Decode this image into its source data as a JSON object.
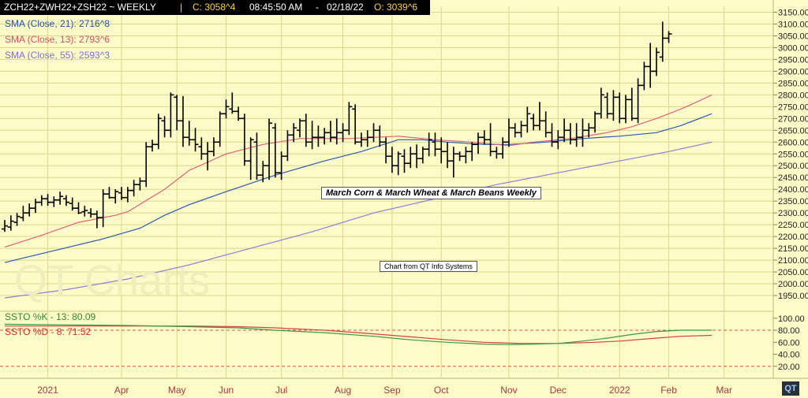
{
  "header": {
    "symbol": "ZCH22+ZWH22+ZSH22  ~  WEEKLY",
    "sep": "|",
    "close": "C: 3058^4",
    "time": "08:45:50 AM",
    "dash": "-",
    "date": "02/18/22",
    "open": "O: 3039^6"
  },
  "legends": {
    "sma21": "SMA (Close, 21): 2716^8",
    "sma13": "SMA (Close, 13): 2793^6",
    "sma55": "SMA (Close, 55): 2593^3",
    "ssto_k": "SSTO %K - 13: 80.09",
    "ssto_d": "SSTO %D - 8: 71.52"
  },
  "annotations": {
    "title_box": "March Corn & March Wheat & March Beans Weekly",
    "source_box": "Chart from QT Info Systems"
  },
  "watermark": "QT Charts",
  "logo": "QT",
  "colors": {
    "background": "#fdfbc8",
    "grid": "#dcd78a",
    "bars": "#000000",
    "sma21": "#2a5bb0",
    "sma13": "#e0607a",
    "sma55": "#8a7fd6",
    "ssto_k": "#3a9a3a",
    "ssto_d": "#d44040",
    "level_line": "#e05050",
    "header_bg": "#000000",
    "header_text": "#ffffff",
    "header_value": "#ffd24a"
  },
  "chart_data": {
    "type": "ohlc-bar",
    "price_ylim": [
      1900,
      3175
    ],
    "price_ticks": [
      "1950.00",
      "2000.00",
      "2050.00",
      "2100.00",
      "2150.00",
      "2200.00",
      "2250.00",
      "2300.00",
      "2350.00",
      "2400.00",
      "2450.00",
      "2500.00",
      "2550.00",
      "2600.00",
      "2650.00",
      "2700.00",
      "2750.00",
      "2800.00",
      "2850.00",
      "2900.00",
      "2950.00",
      "3000.00",
      "3050.00",
      "3100.00",
      "3150.00"
    ],
    "osc_ylim": [
      0,
      105
    ],
    "osc_ticks": [
      "20.00",
      "40.00",
      "60.00",
      "80.00",
      "100.00"
    ],
    "osc_levels": [
      20,
      80
    ],
    "x_labels": [
      "2021",
      "Apr",
      "May",
      "Jun",
      "Jul",
      "Aug",
      "Sep",
      "Oct",
      "Nov",
      "Dec",
      "2022",
      "Feb",
      "Mar"
    ],
    "x_label_weeks": [
      7,
      19,
      28,
      36,
      45,
      55,
      63,
      71,
      82,
      90,
      100,
      108,
      117
    ],
    "weeks_visible": 126,
    "bars": [
      [
        2232,
        2270,
        2220,
        2245
      ],
      [
        2240,
        2290,
        2225,
        2265
      ],
      [
        2260,
        2300,
        2245,
        2285
      ],
      [
        2280,
        2330,
        2265,
        2300
      ],
      [
        2300,
        2340,
        2285,
        2320
      ],
      [
        2320,
        2360,
        2300,
        2345
      ],
      [
        2345,
        2375,
        2330,
        2360
      ],
      [
        2360,
        2380,
        2330,
        2345
      ],
      [
        2345,
        2370,
        2325,
        2355
      ],
      [
        2355,
        2390,
        2335,
        2370
      ],
      [
        2360,
        2375,
        2330,
        2345
      ],
      [
        2340,
        2365,
        2310,
        2320
      ],
      [
        2320,
        2345,
        2295,
        2300
      ],
      [
        2305,
        2330,
        2285,
        2310
      ],
      [
        2300,
        2320,
        2280,
        2295
      ],
      [
        2295,
        2310,
        2235,
        2280
      ],
      [
        2280,
        2400,
        2240,
        2380
      ],
      [
        2380,
        2410,
        2360,
        2365
      ],
      [
        2365,
        2400,
        2340,
        2390
      ],
      [
        2385,
        2410,
        2355,
        2365
      ],
      [
        2365,
        2410,
        2345,
        2395
      ],
      [
        2395,
        2440,
        2370,
        2420
      ],
      [
        2420,
        2450,
        2395,
        2435
      ],
      [
        2435,
        2600,
        2410,
        2580
      ],
      [
        2580,
        2610,
        2560,
        2590
      ],
      [
        2590,
        2720,
        2570,
        2700
      ],
      [
        2690,
        2710,
        2620,
        2650
      ],
      [
        2650,
        2810,
        2620,
        2800
      ],
      [
        2790,
        2800,
        2650,
        2690
      ],
      [
        2690,
        2795,
        2580,
        2620
      ],
      [
        2620,
        2690,
        2585,
        2610
      ],
      [
        2610,
        2660,
        2560,
        2590
      ],
      [
        2580,
        2620,
        2525,
        2550
      ],
      [
        2550,
        2600,
        2480,
        2560
      ],
      [
        2560,
        2620,
        2540,
        2600
      ],
      [
        2600,
        2730,
        2580,
        2720
      ],
      [
        2720,
        2780,
        2700,
        2750
      ],
      [
        2740,
        2810,
        2720,
        2730
      ],
      [
        2730,
        2750,
        2690,
        2700
      ],
      [
        2700,
        2720,
        2500,
        2520
      ],
      [
        2520,
        2620,
        2440,
        2610
      ],
      [
        2600,
        2640,
        2440,
        2460
      ],
      [
        2460,
        2520,
        2430,
        2500
      ],
      [
        2500,
        2700,
        2440,
        2680
      ],
      [
        2660,
        2680,
        2450,
        2470
      ],
      [
        2470,
        2560,
        2440,
        2540
      ],
      [
        2540,
        2650,
        2520,
        2630
      ],
      [
        2630,
        2680,
        2600,
        2660
      ],
      [
        2650,
        2700,
        2620,
        2690
      ],
      [
        2690,
        2720,
        2580,
        2600
      ],
      [
        2600,
        2690,
        2570,
        2620
      ],
      [
        2620,
        2670,
        2580,
        2620
      ],
      [
        2620,
        2660,
        2590,
        2640
      ],
      [
        2640,
        2690,
        2600,
        2620
      ],
      [
        2620,
        2700,
        2590,
        2640
      ],
      [
        2640,
        2680,
        2600,
        2650
      ],
      [
        2650,
        2770,
        2630,
        2750
      ],
      [
        2740,
        2760,
        2590,
        2600
      ],
      [
        2600,
        2640,
        2580,
        2610
      ],
      [
        2610,
        2650,
        2580,
        2620
      ],
      [
        2620,
        2680,
        2600,
        2650
      ],
      [
        2650,
        2670,
        2580,
        2600
      ],
      [
        2600,
        2620,
        2510,
        2540
      ],
      [
        2540,
        2580,
        2470,
        2500
      ],
      [
        2500,
        2560,
        2460,
        2550
      ],
      [
        2540,
        2570,
        2470,
        2510
      ],
      [
        2510,
        2580,
        2490,
        2550
      ],
      [
        2550,
        2590,
        2490,
        2530
      ],
      [
        2530,
        2580,
        2510,
        2570
      ],
      [
        2570,
        2640,
        2540,
        2610
      ],
      [
        2600,
        2640,
        2540,
        2570
      ],
      [
        2570,
        2620,
        2510,
        2560
      ],
      [
        2560,
        2600,
        2490,
        2520
      ],
      [
        2520,
        2580,
        2450,
        2550
      ],
      [
        2550,
        2560,
        2520,
        2540
      ],
      [
        2540,
        2580,
        2510,
        2560
      ],
      [
        2560,
        2600,
        2520,
        2590
      ],
      [
        2590,
        2640,
        2550,
        2620
      ],
      [
        2620,
        2650,
        2590,
        2610
      ],
      [
        2610,
        2680,
        2540,
        2560
      ],
      [
        2560,
        2580,
        2530,
        2550
      ],
      [
        2550,
        2620,
        2530,
        2600
      ],
      [
        2600,
        2700,
        2580,
        2660
      ],
      [
        2660,
        2680,
        2620,
        2640
      ],
      [
        2640,
        2690,
        2620,
        2670
      ],
      [
        2670,
        2750,
        2640,
        2720
      ],
      [
        2700,
        2720,
        2650,
        2670
      ],
      [
        2670,
        2770,
        2650,
        2690
      ],
      [
        2690,
        2730,
        2620,
        2640
      ],
      [
        2640,
        2680,
        2580,
        2600
      ],
      [
        2600,
        2650,
        2570,
        2620
      ],
      [
        2620,
        2700,
        2600,
        2650
      ],
      [
        2650,
        2680,
        2590,
        2610
      ],
      [
        2610,
        2680,
        2580,
        2620
      ],
      [
        2620,
        2700,
        2580,
        2650
      ],
      [
        2650,
        2680,
        2620,
        2660
      ],
      [
        2660,
        2730,
        2640,
        2720
      ],
      [
        2720,
        2830,
        2700,
        2800
      ],
      [
        2790,
        2810,
        2700,
        2720
      ],
      [
        2720,
        2820,
        2690,
        2790
      ],
      [
        2790,
        2810,
        2680,
        2700
      ],
      [
        2700,
        2800,
        2680,
        2780
      ],
      [
        2780,
        2830,
        2690,
        2700
      ],
      [
        2700,
        2870,
        2680,
        2840
      ],
      [
        2840,
        2940,
        2820,
        2920
      ],
      [
        2920,
        3020,
        2830,
        2900
      ],
      [
        2900,
        3000,
        2880,
        2980
      ],
      [
        2960,
        3110,
        2940,
        3040
      ],
      [
        3040,
        3070,
        3020,
        3058
      ]
    ],
    "sma13": [
      [
        0,
        2155
      ],
      [
        6,
        2205
      ],
      [
        12,
        2260
      ],
      [
        18,
        2290
      ],
      [
        20,
        2305
      ],
      [
        26,
        2400
      ],
      [
        30,
        2480
      ],
      [
        36,
        2550
      ],
      [
        42,
        2590
      ],
      [
        48,
        2615
      ],
      [
        56,
        2615
      ],
      [
        64,
        2625
      ],
      [
        70,
        2610
      ],
      [
        76,
        2600
      ],
      [
        82,
        2585
      ],
      [
        86,
        2600
      ],
      [
        92,
        2615
      ],
      [
        98,
        2640
      ],
      [
        102,
        2665
      ],
      [
        106,
        2700
      ],
      [
        110,
        2740
      ],
      [
        113,
        2775
      ],
      [
        115,
        2800
      ]
    ],
    "sma21": [
      [
        0,
        2090
      ],
      [
        8,
        2140
      ],
      [
        16,
        2190
      ],
      [
        22,
        2235
      ],
      [
        26,
        2290
      ],
      [
        30,
        2335
      ],
      [
        36,
        2390
      ],
      [
        44,
        2460
      ],
      [
        52,
        2520
      ],
      [
        58,
        2560
      ],
      [
        64,
        2610
      ],
      [
        68,
        2610
      ],
      [
        72,
        2600
      ],
      [
        78,
        2590
      ],
      [
        82,
        2590
      ],
      [
        88,
        2600
      ],
      [
        94,
        2615
      ],
      [
        100,
        2625
      ],
      [
        106,
        2640
      ],
      [
        110,
        2670
      ],
      [
        115,
        2720
      ]
    ],
    "sma55": [
      [
        0,
        1940
      ],
      [
        10,
        1975
      ],
      [
        20,
        2020
      ],
      [
        30,
        2080
      ],
      [
        40,
        2150
      ],
      [
        50,
        2220
      ],
      [
        60,
        2300
      ],
      [
        70,
        2360
      ],
      [
        80,
        2420
      ],
      [
        90,
        2470
      ],
      [
        100,
        2520
      ],
      [
        108,
        2560
      ],
      [
        115,
        2600
      ]
    ],
    "ssto_k": [
      [
        0,
        90
      ],
      [
        10,
        89
      ],
      [
        20,
        88
      ],
      [
        30,
        86
      ],
      [
        38,
        84
      ],
      [
        44,
        80
      ],
      [
        52,
        76
      ],
      [
        60,
        70
      ],
      [
        66,
        64
      ],
      [
        72,
        60
      ],
      [
        78,
        57
      ],
      [
        82,
        56
      ],
      [
        86,
        57
      ],
      [
        90,
        58
      ],
      [
        94,
        62
      ],
      [
        98,
        67
      ],
      [
        102,
        73
      ],
      [
        106,
        78
      ],
      [
        110,
        80
      ],
      [
        115,
        80.09
      ]
    ],
    "ssto_d": [
      [
        0,
        87
      ],
      [
        10,
        87
      ],
      [
        20,
        87
      ],
      [
        30,
        87
      ],
      [
        38,
        86
      ],
      [
        44,
        84
      ],
      [
        52,
        80
      ],
      [
        60,
        74
      ],
      [
        66,
        69
      ],
      [
        72,
        64
      ],
      [
        78,
        60
      ],
      [
        84,
        58
      ],
      [
        90,
        58
      ],
      [
        96,
        60
      ],
      [
        100,
        62
      ],
      [
        106,
        67
      ],
      [
        110,
        70
      ],
      [
        115,
        71.52
      ]
    ]
  }
}
